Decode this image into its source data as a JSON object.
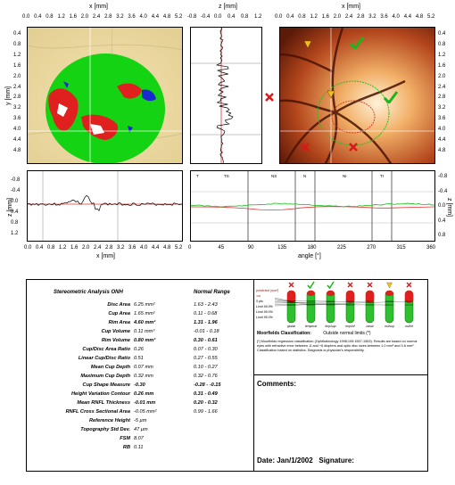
{
  "top_axes": {
    "left_x_title": "x [mm]",
    "left_x_ticks": [
      "0.0",
      "0.4",
      "0.8",
      "1.2",
      "1.6",
      "2.0",
      "2.4",
      "2.8",
      "3.2",
      "3.6",
      "4.0",
      "4.4",
      "4.8",
      "5.2"
    ],
    "left_y_title": "y [mm]",
    "y_ticks": [
      "0.4",
      "0.8",
      "1.2",
      "1.6",
      "2.0",
      "2.4",
      "2.8",
      "3.2",
      "3.6",
      "4.0",
      "4.4",
      "4.8"
    ],
    "mid_x_title": "z [mm]",
    "mid_x_ticks": [
      "-0.8",
      "-0.4",
      "0.0",
      "0.4",
      "0.8",
      "1.2"
    ],
    "right_x_title": "x [mm]",
    "right_x_ticks": [
      "0.0",
      "0.4",
      "0.8",
      "1.2",
      "1.6",
      "2.0",
      "2.4",
      "2.8",
      "3.2",
      "3.6",
      "4.0",
      "4.4",
      "4.8",
      "5.2"
    ],
    "right_y_ticks": [
      "0.4",
      "0.8",
      "1.2",
      "1.6",
      "2.0",
      "2.4",
      "2.8",
      "3.2",
      "3.6",
      "4.0",
      "4.4",
      "4.8"
    ]
  },
  "bottom_axes": {
    "left_z_title": "z [mm]",
    "left_z_ticks": [
      "-0.8",
      "-0.4",
      "0.0",
      "0.4",
      "0.8",
      "1.2"
    ],
    "left_x_title": "x [mm]",
    "left_x_ticks": [
      "0.0",
      "0.4",
      "0.8",
      "1.2",
      "1.6",
      "2.0",
      "2.4",
      "2.8",
      "3.2",
      "3.6",
      "4.0",
      "4.4",
      "4.8",
      "5.2"
    ],
    "right_z_title": "z [mm]",
    "right_z_ticks": [
      "-0.8",
      "-0.4",
      "0.0",
      "0.4",
      "0.8"
    ],
    "right_x_title": "angle [°]",
    "right_x_ticks": [
      "0",
      "45",
      "90",
      "135",
      "180",
      "225",
      "270",
      "315",
      "360"
    ],
    "sector_labels": [
      "T",
      "TS",
      "NS",
      "N",
      "NI",
      "TI"
    ]
  },
  "stats": {
    "title": "Stereometric Analysis ONH",
    "normal_title": "Normal Range",
    "rows": [
      {
        "label": "Disc Area",
        "value": "6.25 mm²",
        "range": "1.63 - 2.43",
        "bold": false
      },
      {
        "label": "Cup Area",
        "value": "1.65 mm²",
        "range": "0.11 - 0.68",
        "bold": false
      },
      {
        "label": "Rim Area",
        "value": "4.60 mm²",
        "range": "1.31 - 1.96",
        "bold": true
      },
      {
        "label": "Cup Volume",
        "value": "0.11 mm³",
        "range": "-0.01 - 0.18",
        "bold": false
      },
      {
        "label": "Rim Volume",
        "value": "0.80 mm³",
        "range": "0.30 - 0.61",
        "bold": true
      },
      {
        "label": "Cup/Disc Area Ratio",
        "value": "0.26",
        "range": "0.07 - 0.30",
        "bold": false
      },
      {
        "label": "Linear Cup/Disc Ratio",
        "value": "0.51",
        "range": "0.27 - 0.55",
        "bold": false
      },
      {
        "label": "Mean Cup Depth",
        "value": "0.07 mm",
        "range": "0.10 - 0.27",
        "bold": false
      },
      {
        "label": "Maximum Cup Depth",
        "value": "0.32 mm",
        "range": "0.32 - 0.76",
        "bold": false
      },
      {
        "label": "Cup Shape Measure",
        "value": "-0.30",
        "range": "-0.28 - -0.15",
        "bold": true
      },
      {
        "label": "Height Variation Contour",
        "value": "0.26 mm",
        "range": "0.31 - 0.49",
        "bold": true
      },
      {
        "label": "Mean RNFL Thickness",
        "value": "-0.01 mm",
        "range": "0.20 - 0.32",
        "bold": true
      },
      {
        "label": "RNFL Cross Sectional Area",
        "value": "-0.05 mm²",
        "range": "0.99 - 1.66",
        "bold": false
      },
      {
        "label": "Reference Height",
        "value": "-5 µm",
        "range": "",
        "bold": false
      },
      {
        "label": "Topography Std Dev.",
        "value": "47 µm",
        "range": "",
        "bold": false
      },
      {
        "label": "FSM",
        "value": "8.07",
        "range": "",
        "bold": false
      },
      {
        "label": "RB",
        "value": "0.11",
        "range": "",
        "bold": false
      }
    ]
  },
  "moorfields": {
    "legend": [
      "predicted (mm²)",
      "<m",
      "5 pts",
      "Limit 99.9%",
      "Limit 99.0%",
      "Limit 95.0%"
    ],
    "columns": [
      "global",
      "temporal",
      "tmp/sup",
      "tmp/inf",
      "nasal",
      "nsl/sup",
      "nsl/inf"
    ],
    "column_marks": [
      "x",
      "check",
      "check",
      "x",
      "x",
      "warn",
      "x"
    ],
    "classification_label": "Moorfields Classification:",
    "classification_value": "Outside normal limits (*)",
    "footnote": "[*] Moorfields regression classification (Ophthalmology 1998;105:1557-1563). Results are based on normal eyes with refractive error between -6 and +6 diopters and optic disc sizes between 1.0 mm² and 3.6 mm². Classification based on statistics. Diagnosis is physician's responsibility."
  },
  "comments": {
    "label": "Comments:",
    "date_label": "Date: Jan/1/2002   Signature:"
  }
}
